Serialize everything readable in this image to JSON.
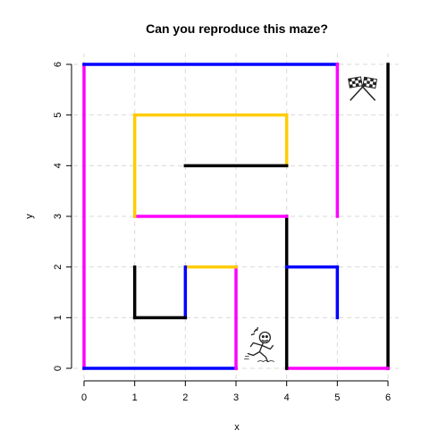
{
  "chart_data": {
    "type": "maze",
    "title": "Can you reproduce this maze?",
    "xlabel": "x",
    "ylabel": "y",
    "xlim": [
      0,
      6
    ],
    "ylim": [
      0,
      6
    ],
    "x_ticks": [
      "0",
      "1",
      "2",
      "3",
      "4",
      "5",
      "6"
    ],
    "y_ticks": [
      "0",
      "1",
      "2",
      "3",
      "4",
      "5",
      "6"
    ],
    "grid": true,
    "segments": [
      {
        "color": "#ff00ff",
        "x1": 0,
        "y1": 0,
        "x2": 0,
        "y2": 6
      },
      {
        "color": "#0000ff",
        "x1": 0,
        "y1": 6,
        "x2": 5,
        "y2": 6
      },
      {
        "color": "#ff00ff",
        "x1": 5,
        "y1": 6,
        "x2": 5,
        "y2": 3
      },
      {
        "color": "#000000",
        "x1": 6,
        "y1": 6,
        "x2": 6,
        "y2": 0
      },
      {
        "color": "#ff00ff",
        "x1": 6,
        "y1": 0,
        "x2": 4,
        "y2": 0
      },
      {
        "color": "#000000",
        "x1": 4,
        "y1": 0,
        "x2": 4,
        "y2": 3
      },
      {
        "color": "#ff00ff",
        "x1": 4,
        "y1": 3,
        "x2": 1,
        "y2": 3
      },
      {
        "color": "#ffcc00",
        "x1": 1,
        "y1": 3,
        "x2": 1,
        "y2": 5
      },
      {
        "color": "#ffcc00",
        "x1": 1,
        "y1": 5,
        "x2": 4,
        "y2": 5
      },
      {
        "color": "#ffcc00",
        "x1": 4,
        "y1": 5,
        "x2": 4,
        "y2": 4
      },
      {
        "color": "#000000",
        "x1": 4,
        "y1": 4,
        "x2": 2,
        "y2": 4
      },
      {
        "color": "#0000ff",
        "x1": 0,
        "y1": 0,
        "x2": 3,
        "y2": 0
      },
      {
        "color": "#ff00ff",
        "x1": 3,
        "y1": 0,
        "x2": 3,
        "y2": 2
      },
      {
        "color": "#ffcc00",
        "x1": 3,
        "y1": 2,
        "x2": 2,
        "y2": 2
      },
      {
        "color": "#0000ff",
        "x1": 2,
        "y1": 2,
        "x2": 2,
        "y2": 1
      },
      {
        "color": "#000000",
        "x1": 2,
        "y1": 1,
        "x2": 1,
        "y2": 1
      },
      {
        "color": "#000000",
        "x1": 1,
        "y1": 1,
        "x2": 1,
        "y2": 2
      },
      {
        "color": "#0000ff",
        "x1": 4,
        "y1": 2,
        "x2": 5,
        "y2": 2
      },
      {
        "color": "#0000ff",
        "x1": 5,
        "y1": 2,
        "x2": 5,
        "y2": 1
      }
    ],
    "markers": [
      {
        "icon": "racing-flags-icon",
        "x": 5.5,
        "y": 5.5
      },
      {
        "icon": "running-person-icon",
        "x": 3.5,
        "y": 0.45
      }
    ]
  }
}
